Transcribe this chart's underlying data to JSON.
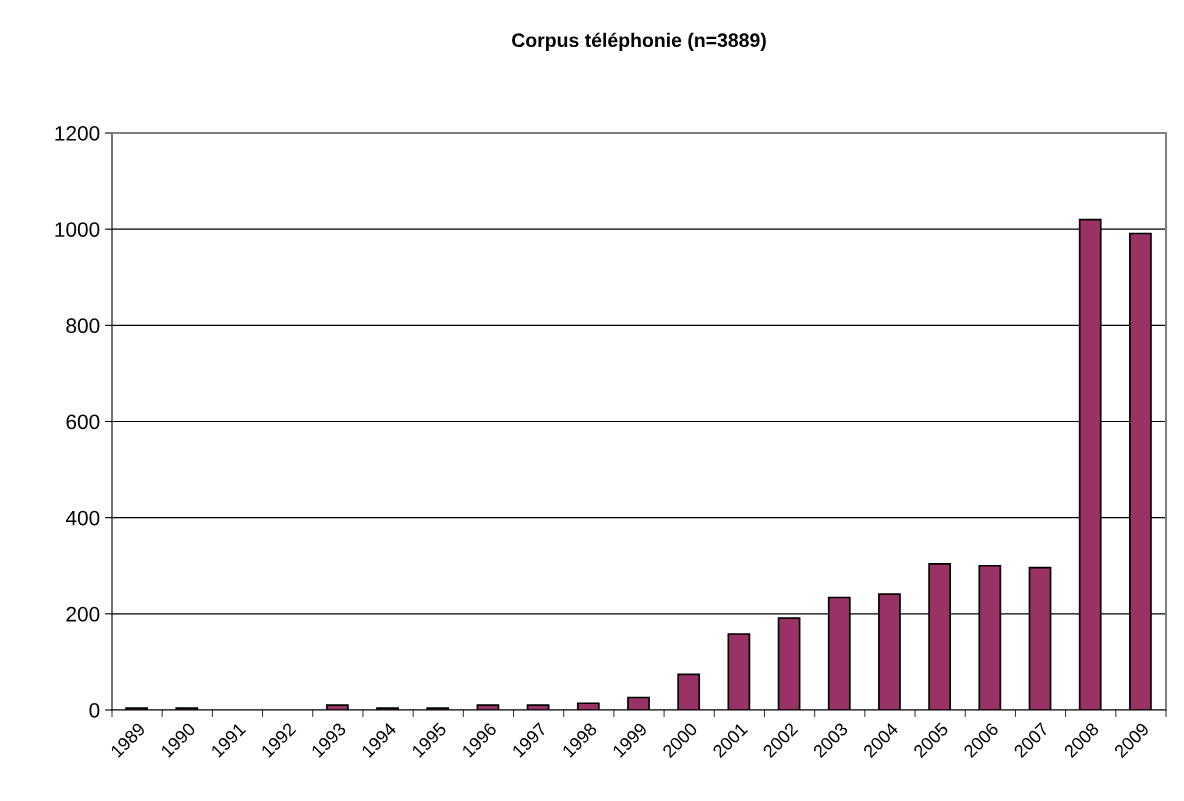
{
  "chart_data": {
    "type": "bar",
    "title": "Corpus téléphonie (n=3889)",
    "categories": [
      "1989",
      "1990",
      "1991",
      "1992",
      "1993",
      "1994",
      "1995",
      "1996",
      "1997",
      "1998",
      "1999",
      "2000",
      "2001",
      "2002",
      "2003",
      "2004",
      "2005",
      "2006",
      "2007",
      "2008",
      "2009"
    ],
    "values": [
      4,
      4,
      0,
      0,
      10,
      4,
      4,
      10,
      10,
      14,
      26,
      74,
      158,
      191,
      234,
      241,
      304,
      300,
      296,
      1020,
      991
    ],
    "color": "#993366",
    "ylim": [
      0,
      1200
    ],
    "yticks": [
      0,
      200,
      400,
      600,
      800,
      1000,
      1200
    ],
    "grid": "y",
    "legend": false
  }
}
